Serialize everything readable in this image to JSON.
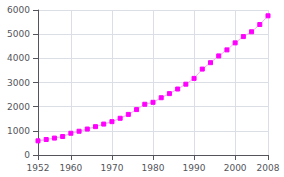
{
  "chart_data": {
    "type": "line",
    "x": [
      1952,
      1954,
      1956,
      1958,
      1960,
      1962,
      1964,
      1966,
      1968,
      1970,
      1972,
      1974,
      1976,
      1978,
      1980,
      1982,
      1984,
      1986,
      1988,
      1990,
      1992,
      1994,
      1996,
      1998,
      2000,
      2002,
      2004,
      2006,
      2008
    ],
    "values": [
      586,
      641,
      700,
      765,
      900,
      983,
      1074,
      1173,
      1280,
      1380,
      1520,
      1680,
      1880,
      2100,
      2180,
      2370,
      2540,
      2730,
      2930,
      3170,
      3555,
      3820,
      4100,
      4350,
      4640,
      4900,
      5100,
      5400,
      5760
    ],
    "color": "#ffaaee",
    "colors": [
      "#ff00ff",
      "#ff00ff",
      "#ff00ff",
      "#ff00ff",
      "#ff00ff",
      "#ff00ff",
      "#ff00ff",
      "#ff00ff",
      "#ff00ff",
      "#ff00ff",
      "#ff00ff",
      "#ff00ff",
      "#ff00ff",
      "#ff00ff",
      "#ff00ff",
      "#ff00ff",
      "#ff00ff",
      "#ff00ff",
      "#ff00ff",
      "#ff00ff",
      "#ff00ff",
      "#ff00ff",
      "#ff00ff",
      "#ff00ff",
      "#ff00ff",
      "#ff00ff",
      "#ff00ff",
      "#ff00ff",
      "#ff00ff"
    ],
    "marker": "square",
    "xlim": [
      1952,
      2008
    ],
    "ylim": [
      0,
      6000
    ],
    "xticks": [
      1952,
      1960,
      1970,
      1980,
      1990,
      2000,
      2008
    ],
    "yticks": [
      0,
      1000,
      2000,
      3000,
      4000,
      5000,
      6000
    ],
    "grid": true
  }
}
